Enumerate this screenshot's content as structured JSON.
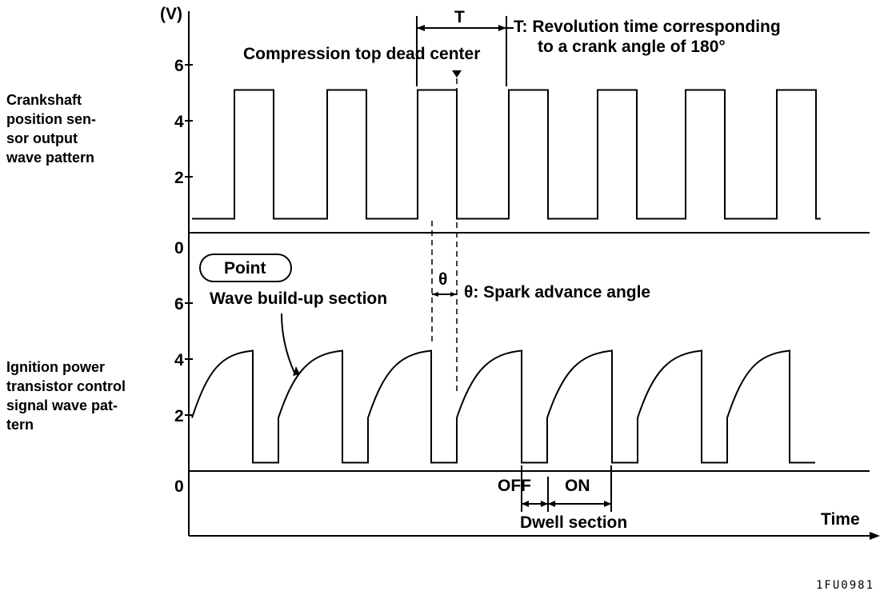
{
  "figure_code": "1FU0981",
  "y_unit": "(V)",
  "x_label": "Time",
  "top_panel": {
    "title_lines": [
      "Crankshaft",
      "position sen-",
      "sor output",
      "wave pattern"
    ],
    "ticks": [
      "6",
      "4",
      "2",
      "0"
    ]
  },
  "bottom_panel": {
    "title_lines": [
      "Ignition power",
      "transistor control",
      "signal wave pat-",
      "tern"
    ],
    "ticks": [
      "6",
      "4",
      "2",
      "0"
    ]
  },
  "annotations": {
    "T_symbol": "T",
    "T_desc_line1": "T: Revolution time corresponding",
    "T_desc_line2": "to a crank angle of 180°",
    "compression_tdc": "Compression top dead center",
    "theta_symbol": "θ",
    "theta_desc": "θ: Spark advance angle",
    "point_label": "Point",
    "wave_buildup": "Wave build-up section",
    "off_label": "OFF",
    "on_label": "ON",
    "dwell_section": "Dwell section"
  },
  "chart_data": {
    "type": "line",
    "top_signal": {
      "description_ref": "top_panel",
      "low_level_v": 0.5,
      "high_level_v": 5.1,
      "pulse_count": 7
    },
    "bottom_signal": {
      "description_ref": "bottom_panel",
      "low_level_v": 0.3,
      "peak_level_v": 4.3,
      "restart_level_v": 1.9,
      "pulse_count": 7
    },
    "ylim": [
      0,
      7
    ]
  }
}
